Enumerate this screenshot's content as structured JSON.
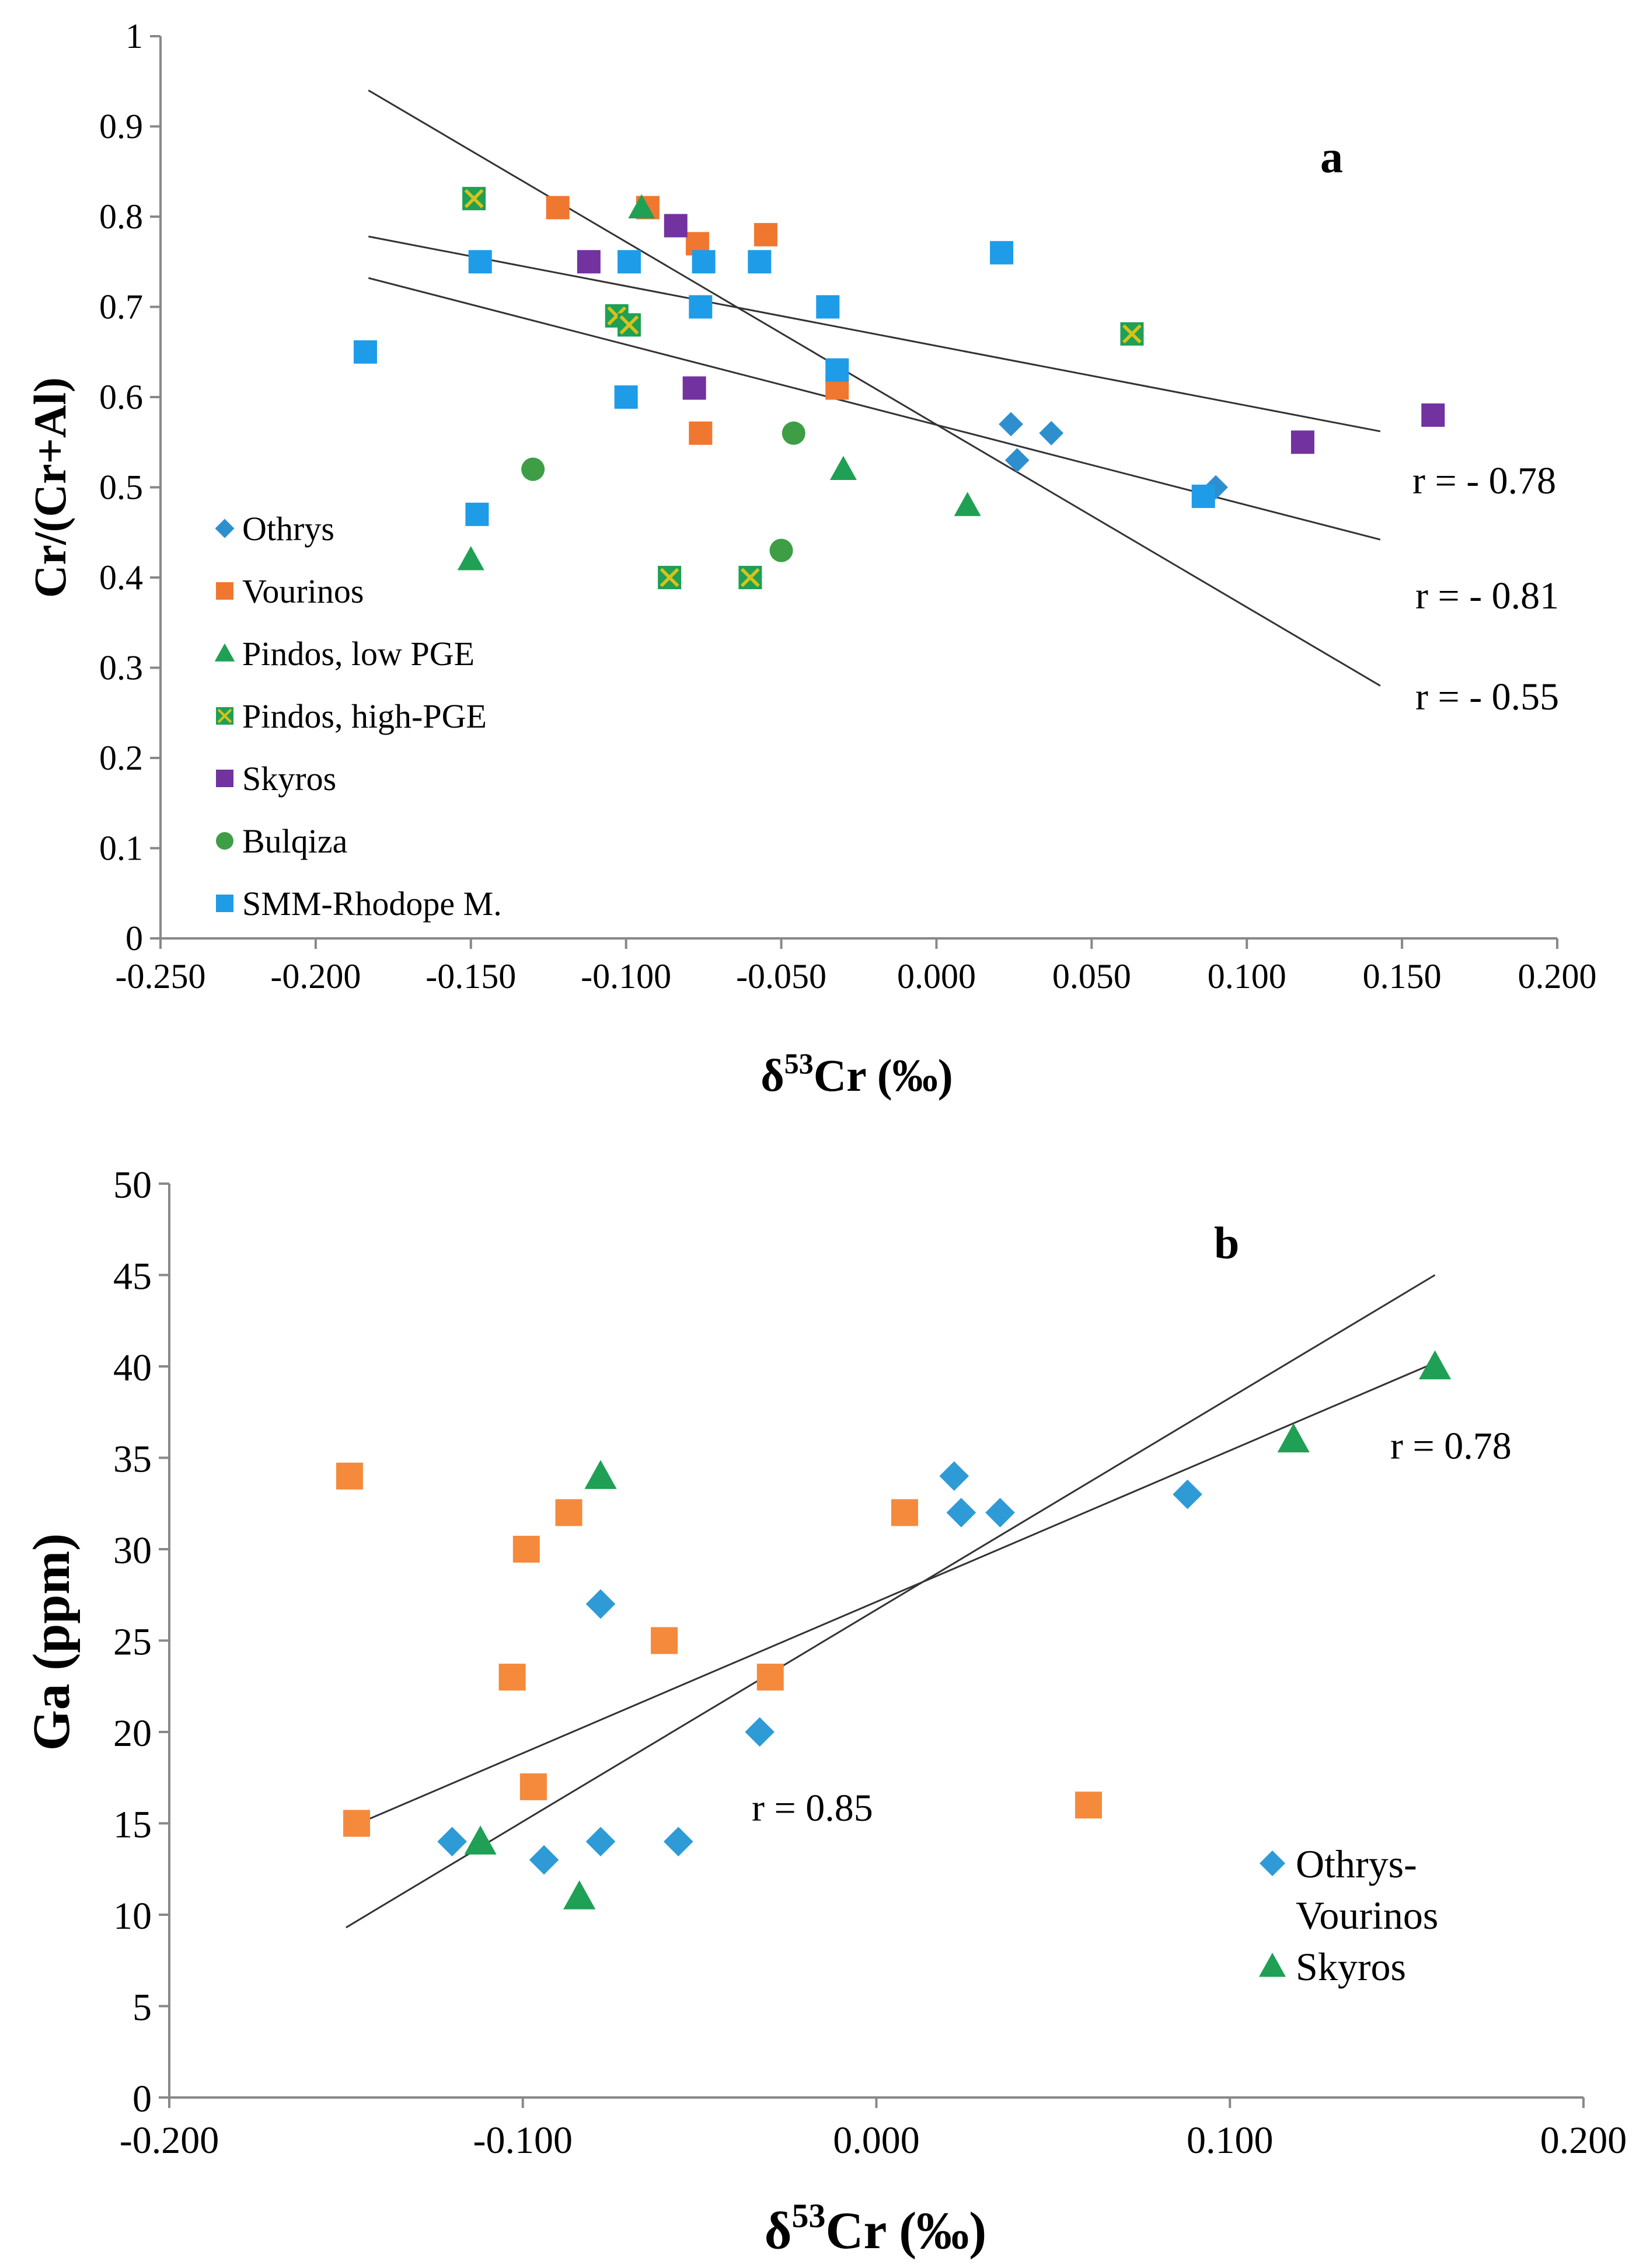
{
  "colors": {
    "Othrys": "#2E8FCF",
    "Vourinos": "#F07730",
    "Pindos, low PGE": "#1FA055",
    "Pindos, high-PGE": "#1FA055",
    "Pindos, high-PGE_cross": "#D8C21A",
    "Skyros": "#7232A0",
    "Bulqiza": "#3E9E45",
    "SMM-Rhodope M.": "#1E9CE8",
    "Othrys-Vourinos_b": "#2E9BD6",
    "Vourinos_b": "#F58A3C",
    "Skyros_b": "#1FA055"
  },
  "chart_data": [
    {
      "type": "scatter",
      "panel_label": "a",
      "xlabel_main": "δ",
      "xlabel_sup": "53",
      "xlabel_rest": "Cr (‰)",
      "ylabel": "Cr/(Cr+Al)",
      "xlim": [
        -0.25,
        0.2
      ],
      "ylim": [
        0,
        1
      ],
      "xticks": [
        "-0.250",
        "-0.200",
        "-0.150",
        "-0.100",
        "-0.050",
        "0.000",
        "0.050",
        "0.100",
        "0.150",
        "0.200"
      ],
      "yticks": [
        "0",
        "0.1",
        "0.2",
        "0.3",
        "0.4",
        "0.5",
        "0.6",
        "0.7",
        "0.8",
        "0.9",
        "1"
      ],
      "legend_position": "bottom-left",
      "series": [
        {
          "name": "Othrys",
          "marker": "diamond",
          "points": [
            [
              0.024,
              0.57
            ],
            [
              0.026,
              0.53
            ],
            [
              0.037,
              0.56
            ],
            [
              0.09,
              0.5
            ]
          ]
        },
        {
          "name": "Vourinos",
          "marker": "square",
          "points": [
            [
              -0.122,
              0.81
            ],
            [
              -0.093,
              0.81
            ],
            [
              -0.077,
              0.77
            ],
            [
              -0.055,
              0.78
            ],
            [
              -0.076,
              0.56
            ],
            [
              -0.032,
              0.61
            ]
          ]
        },
        {
          "name": "Pindos, low PGE",
          "marker": "triangle",
          "points": [
            [
              -0.15,
              0.42
            ],
            [
              -0.095,
              0.81
            ],
            [
              -0.03,
              0.52
            ],
            [
              0.01,
              0.48
            ]
          ]
        },
        {
          "name": "Pindos, high-PGE",
          "marker": "square-x",
          "points": [
            [
              -0.149,
              0.82
            ],
            [
              -0.103,
              0.69
            ],
            [
              -0.099,
              0.68
            ],
            [
              -0.086,
              0.4
            ],
            [
              -0.06,
              0.4
            ],
            [
              0.063,
              0.67
            ]
          ]
        },
        {
          "name": "Skyros",
          "marker": "square",
          "points": [
            [
              -0.112,
              0.75
            ],
            [
              -0.084,
              0.79
            ],
            [
              -0.078,
              0.61
            ],
            [
              0.118,
              0.55
            ],
            [
              0.16,
              0.58
            ]
          ]
        },
        {
          "name": "Bulqiza",
          "marker": "circle",
          "points": [
            [
              -0.13,
              0.52
            ],
            [
              -0.05,
              0.43
            ],
            [
              -0.046,
              0.56
            ]
          ]
        },
        {
          "name": "SMM-Rhodope M.",
          "marker": "square",
          "points": [
            [
              -0.184,
              0.65
            ],
            [
              -0.147,
              0.75
            ],
            [
              -0.148,
              0.47
            ],
            [
              -0.1,
              0.6
            ],
            [
              -0.099,
              0.75
            ],
            [
              -0.075,
              0.75
            ],
            [
              -0.076,
              0.7
            ],
            [
              -0.057,
              0.75
            ],
            [
              -0.035,
              0.7
            ],
            [
              -0.032,
              0.63
            ],
            [
              0.021,
              0.76
            ],
            [
              0.086,
              0.49
            ]
          ]
        }
      ],
      "trendlines": [
        {
          "x": [
            -0.183,
            0.143
          ],
          "y": [
            0.94,
            0.28
          ]
        },
        {
          "x": [
            -0.183,
            0.143
          ],
          "y": [
            0.778,
            0.562
          ]
        },
        {
          "x": [
            -0.183,
            0.143
          ],
          "y": [
            0.732,
            0.442
          ]
        }
      ],
      "annotations": [
        "r = - 0.78",
        "r = - 0.81",
        "r = - 0.55"
      ]
    },
    {
      "type": "scatter",
      "panel_label": "b",
      "xlabel_main": "δ",
      "xlabel_sup": "53",
      "xlabel_rest": "Cr (‰)",
      "ylabel": "Ga (ppm)",
      "xlim": [
        -0.2,
        0.2
      ],
      "ylim": [
        0,
        50
      ],
      "xticks": [
        "-0.200",
        "-0.100",
        "0.000",
        "0.100",
        "0.200"
      ],
      "yticks": [
        "0",
        "5",
        "10",
        "15",
        "20",
        "25",
        "30",
        "35",
        "40",
        "45",
        "50"
      ],
      "legend_position": "bottom-right",
      "legend": [
        {
          "label_lines": [
            "Othrys-",
            "Vourinos"
          ],
          "marker": "diamond"
        },
        {
          "label_lines": [
            "Skyros"
          ],
          "marker": "triangle"
        }
      ],
      "series": [
        {
          "name": "Othrys-Vourinos",
          "marker": "diamond",
          "points": [
            [
              -0.12,
              14
            ],
            [
              -0.094,
              13
            ],
            [
              -0.078,
              27
            ],
            [
              -0.078,
              14
            ],
            [
              -0.056,
              14
            ],
            [
              -0.033,
              20
            ],
            [
              0.022,
              34
            ],
            [
              0.024,
              32
            ],
            [
              0.035,
              32
            ],
            [
              0.088,
              33
            ]
          ]
        },
        {
          "name": "Vourinos",
          "marker": "square",
          "points": [
            [
              -0.149,
              34
            ],
            [
              -0.147,
              15
            ],
            [
              -0.103,
              23
            ],
            [
              -0.099,
              30
            ],
            [
              -0.097,
              17
            ],
            [
              -0.087,
              32
            ],
            [
              -0.06,
              25
            ],
            [
              -0.03,
              23
            ],
            [
              0.008,
              32
            ],
            [
              0.06,
              16
            ]
          ]
        },
        {
          "name": "Skyros",
          "marker": "triangle",
          "points": [
            [
              -0.112,
              14
            ],
            [
              -0.084,
              11
            ],
            [
              -0.078,
              34
            ],
            [
              0.118,
              36
            ],
            [
              0.158,
              40
            ]
          ]
        }
      ],
      "trendlines": [
        {
          "x": [
            -0.15,
            0.158
          ],
          "y": [
            14.7,
            40.2
          ]
        },
        {
          "x": [
            -0.15,
            0.158
          ],
          "y": [
            9.3,
            45
          ]
        }
      ],
      "annotations": [
        "r =  0.78",
        "r =  0.85"
      ]
    }
  ]
}
